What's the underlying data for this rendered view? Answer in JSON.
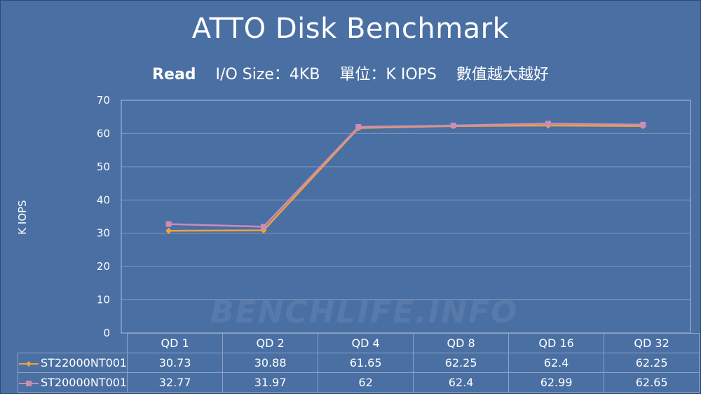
{
  "chart_data": {
    "type": "line",
    "title": "ATTO Disk Benchmark",
    "subtitle": {
      "mode": "Read",
      "io_size": "I/O Size：4KB",
      "unit": "單位：K IOPS",
      "note": "數值越大越好"
    },
    "ylabel": "K IOPS",
    "xlabel": "",
    "ylim": [
      0,
      70
    ],
    "yticks": [
      "0",
      "10",
      "20",
      "30",
      "40",
      "50",
      "60",
      "70"
    ],
    "grid": true,
    "categories": [
      "QD 1",
      "QD 2",
      "QD 4",
      "QD 8",
      "QD 16",
      "QD 32"
    ],
    "series": [
      {
        "name": "ST22000NT001",
        "values": [
          30.73,
          30.88,
          61.65,
          62.25,
          62.4,
          62.25
        ],
        "labels": [
          "30.73",
          "30.88",
          "61.65",
          "62.25",
          "62.4",
          "62.25"
        ],
        "color": "#f2a13a",
        "marker": "diamond"
      },
      {
        "name": "ST20000NT001",
        "values": [
          32.77,
          31.97,
          62,
          62.4,
          62.99,
          62.65
        ],
        "labels": [
          "32.77",
          "31.97",
          "62",
          "62.4",
          "62.99",
          "62.65"
        ],
        "color": "#c98db8",
        "marker": "square"
      }
    ]
  },
  "watermark": "BENCHLIFE.INFO",
  "colors": {
    "background": "#4a6fa3",
    "plot_border": "#aebed6",
    "gridline": "#7e97bd",
    "text": "#ffffff"
  }
}
